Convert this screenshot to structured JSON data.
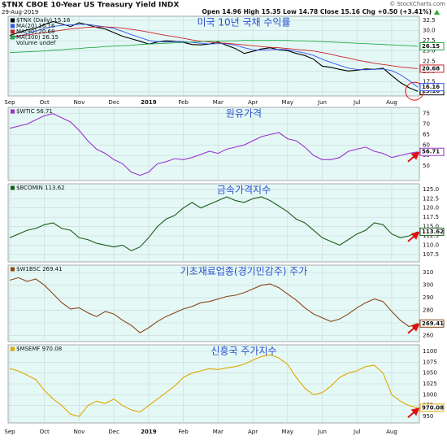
{
  "source": "© StockCharts.com",
  "chart_data": [
    {
      "type": "line",
      "title": "$TNX CBOE 10-Year US Treasury Yield INDX",
      "date": "29-Aug-2019",
      "quote": "Open 14.96 High 15.35 Low 14.78 Close 15.16 Chg +0.50 (+3.41%)",
      "annotation": "미국 10년 국채 수익률",
      "volume_label": "Volume undef",
      "categories": [
        "Sep",
        null,
        null,
        null,
        "Oct",
        null,
        null,
        null,
        "Nov",
        null,
        null,
        null,
        "Dec",
        null,
        null,
        null,
        "2019",
        null,
        null,
        null,
        "Feb",
        null,
        null,
        null,
        "Mar",
        null,
        null,
        null,
        "Apr",
        null,
        null,
        null,
        "May",
        null,
        null,
        null,
        "Jun",
        null,
        null,
        null,
        "Jul",
        null,
        null,
        null,
        "Aug",
        null,
        null,
        null
      ],
      "ylim": [
        14,
        33.5
      ],
      "yticks": [
        {
          "value": 15,
          "label": "15.0"
        },
        {
          "value": 17.5,
          "label": "17.5"
        },
        {
          "value": 20,
          "label": "20.0"
        },
        {
          "value": 22.5,
          "label": "22.5"
        },
        {
          "value": 25,
          "label": "25.0"
        },
        {
          "value": 27.5,
          "label": "27.5"
        },
        {
          "value": 30,
          "label": "30.0"
        },
        {
          "value": 32.5,
          "label": "32.5"
        }
      ],
      "grid": true,
      "series": [
        {
          "name": "$TNX (Daily) 15.16",
          "color": "#000000",
          "values": [
            28.8,
            29.5,
            30.2,
            30.6,
            31.5,
            32.2,
            31.6,
            31.0,
            31.9,
            31.4,
            30.8,
            30.4,
            29.5,
            28.6,
            28.0,
            27.4,
            26.7,
            27.2,
            27.5,
            27.4,
            27.1,
            26.6,
            26.5,
            26.7,
            27.2,
            26.4,
            25.6,
            24.4,
            24.9,
            25.5,
            25.8,
            25.3,
            25.1,
            24.4,
            23.9,
            23.0,
            21.3,
            21.0,
            20.5,
            20.1,
            20.3,
            20.6,
            20.5,
            20.8,
            19.0,
            17.3,
            16.0,
            15.16
          ]
        },
        {
          "name": "MA(20) 16.16",
          "color": "#3355ee",
          "values": [
            28.0,
            28.6,
            29.2,
            29.9,
            30.5,
            31.0,
            31.3,
            31.4,
            31.5,
            31.5,
            31.2,
            30.9,
            30.5,
            29.8,
            29.0,
            28.3,
            27.6,
            27.3,
            27.2,
            27.3,
            27.3,
            27.1,
            26.9,
            26.7,
            26.8,
            26.8,
            26.4,
            25.8,
            25.3,
            25.2,
            25.3,
            25.4,
            25.3,
            24.9,
            24.5,
            23.9,
            23.0,
            22.2,
            21.5,
            20.8,
            20.5,
            20.4,
            20.5,
            20.6,
            20.2,
            19.2,
            17.8,
            16.16
          ]
        },
        {
          "name": "MA(90) 20.68",
          "color": "#cc2222",
          "values": [
            28.5,
            28.7,
            28.9,
            29.2,
            29.5,
            29.8,
            30.1,
            30.4,
            30.6,
            30.8,
            30.9,
            30.9,
            30.8,
            30.6,
            30.3,
            30.0,
            29.6,
            29.2,
            28.8,
            28.5,
            28.1,
            27.7,
            27.4,
            27.2,
            27.0,
            26.9,
            26.7,
            26.5,
            26.3,
            26.1,
            25.9,
            25.8,
            25.6,
            25.4,
            25.2,
            25.0,
            24.6,
            24.2,
            23.7,
            23.3,
            22.8,
            22.4,
            22.0,
            21.7,
            21.4,
            21.1,
            20.9,
            20.68
          ]
        },
        {
          "name": "MA(300) 26.15",
          "color": "#22aa44",
          "values": [
            24.6,
            24.7,
            24.8,
            24.9,
            25.0,
            25.2,
            25.3,
            25.5,
            25.6,
            25.8,
            25.9,
            26.1,
            26.2,
            26.3,
            26.4,
            26.6,
            26.7,
            26.8,
            26.9,
            27.0,
            27.1,
            27.2,
            27.3,
            27.4,
            27.4,
            27.5,
            27.5,
            27.6,
            27.6,
            27.6,
            27.6,
            27.6,
            27.6,
            27.5,
            27.5,
            27.4,
            27.3,
            27.2,
            27.1,
            27.0,
            26.9,
            26.8,
            26.7,
            26.6,
            26.5,
            26.4,
            26.3,
            26.15
          ]
        }
      ]
    },
    {
      "type": "line",
      "annotation": "원유가격",
      "ylim": [
        43,
        78
      ],
      "yticks": [
        50,
        55,
        60,
        65,
        70,
        75
      ],
      "grid": true,
      "series": [
        {
          "name": "$WTIC 56.71",
          "color": "#9933cc",
          "values": [
            68,
            69,
            70,
            72,
            74,
            75,
            73,
            71,
            67,
            62,
            58,
            56,
            53,
            51,
            47,
            45.5,
            47,
            51,
            52,
            53.5,
            53,
            54,
            55.5,
            57,
            56,
            58,
            59,
            60,
            62,
            64,
            65,
            66,
            63,
            62,
            59,
            55,
            53,
            53,
            54,
            57,
            58,
            59,
            57,
            56,
            54,
            55,
            56,
            56.71
          ]
        }
      ]
    },
    {
      "type": "line",
      "annotation": "금속가격지수",
      "ylim": [
        105.5,
        126.5
      ],
      "yticks": [
        {
          "value": 107.5,
          "label": "107.5"
        },
        {
          "value": 110,
          "label": "110.0"
        },
        {
          "value": 112.5,
          "label": "112.5"
        },
        {
          "value": 115,
          "label": "115.0"
        },
        {
          "value": 117.5,
          "label": "117.5"
        },
        {
          "value": 120,
          "label": "120.0"
        },
        {
          "value": 122.5,
          "label": "122.5"
        },
        {
          "value": 125,
          "label": "125.0"
        }
      ],
      "grid": true,
      "series": [
        {
          "name": "$BCOMIN 113.62",
          "color": "#1a5c1a",
          "values": [
            112,
            113,
            114,
            114.5,
            115.5,
            116,
            114.5,
            114,
            112,
            111.5,
            110.5,
            110,
            109.5,
            110,
            108.5,
            109.5,
            112,
            115,
            117,
            118,
            120,
            121.5,
            120,
            121,
            122,
            123,
            122,
            121.5,
            122.5,
            123,
            122,
            120.5,
            119,
            117,
            116,
            114,
            112,
            111,
            110,
            111.5,
            113,
            114,
            116,
            115.5,
            113,
            112,
            112.5,
            113.62
          ]
        }
      ]
    },
    {
      "type": "line",
      "annotation": "기초재료업종(경기민감주) 주가",
      "ylim": [
        255,
        316
      ],
      "yticks": [
        260,
        270,
        280,
        290,
        300,
        310
      ],
      "grid": true,
      "series": [
        {
          "name": "$W1BSC 269.41",
          "color": "#8b4513",
          "values": [
            304,
            306,
            303,
            305,
            300,
            293,
            286,
            281,
            282,
            278,
            275,
            279,
            277,
            272,
            268,
            262,
            266,
            271,
            275,
            278,
            281,
            283,
            286,
            287,
            289,
            291,
            292,
            294,
            297,
            300,
            301,
            298,
            293,
            288,
            282,
            277,
            274,
            271,
            273,
            277,
            282,
            286,
            289,
            287,
            279,
            272,
            267,
            269.41
          ]
        }
      ]
    },
    {
      "type": "line",
      "annotation": "신흥국 주가지수",
      "categories": [
        "Sep",
        null,
        null,
        null,
        "Oct",
        null,
        null,
        null,
        "Nov",
        null,
        null,
        null,
        "Dec",
        null,
        null,
        null,
        "2019",
        null,
        null,
        null,
        "Feb",
        null,
        null,
        null,
        "Mar",
        null,
        null,
        null,
        "Apr",
        null,
        null,
        null,
        "May",
        null,
        null,
        null,
        "Jun",
        null,
        null,
        null,
        "Jul",
        null,
        null,
        null,
        "Aug",
        null,
        null,
        null
      ],
      "ylim": [
        935,
        1115
      ],
      "yticks": [
        950,
        975,
        1000,
        1025,
        1050,
        1075,
        1100
      ],
      "grid": true,
      "series": [
        {
          "name": "$MSEMF 970.08",
          "color": "#e0a800",
          "values": [
            1060,
            1055,
            1045,
            1035,
            1010,
            990,
            975,
            955,
            950,
            975,
            985,
            980,
            990,
            975,
            965,
            960,
            975,
            990,
            1005,
            1020,
            1040,
            1050,
            1055,
            1060,
            1058,
            1062,
            1065,
            1070,
            1080,
            1088,
            1092,
            1085,
            1070,
            1040,
            1015,
            1000,
            1005,
            1020,
            1040,
            1050,
            1055,
            1065,
            1068,
            1050,
            1000,
            985,
            975,
            970.08
          ]
        }
      ]
    }
  ]
}
